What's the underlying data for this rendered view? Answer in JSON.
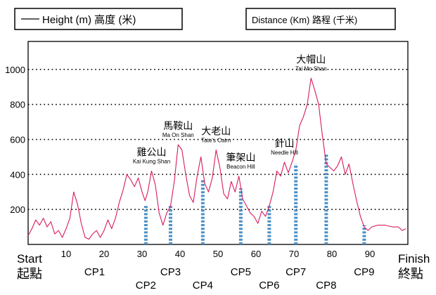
{
  "legend": {
    "height_label": "Height (m)  高度 (米)",
    "distance_label": "Distance (Km)  路程 (千米)"
  },
  "axis": {
    "start_en": "Start",
    "start_zh": "起點",
    "finish_en": "Finish",
    "finish_zh": "終點"
  },
  "colors": {
    "profile_line": "#d81b60",
    "checkpoint_bar": "#4a90c8",
    "grid": "#000000"
  },
  "chart_data": {
    "type": "line",
    "title": "",
    "xlabel": "Distance (Km) 路程 (千米)",
    "ylabel": "Height (m) 高度 (米)",
    "xlim": [
      0,
      100
    ],
    "ylim": [
      0,
      1160
    ],
    "x_ticks": [
      10,
      20,
      30,
      40,
      50,
      60,
      70,
      80,
      90
    ],
    "y_ticks": [
      200,
      400,
      600,
      800,
      1000
    ],
    "grid": "horizontal dotted",
    "series": [
      {
        "name": "Height (m)",
        "points": [
          [
            0,
            50
          ],
          [
            1,
            90
          ],
          [
            2,
            140
          ],
          [
            3,
            110
          ],
          [
            4,
            150
          ],
          [
            5,
            100
          ],
          [
            6,
            130
          ],
          [
            7,
            60
          ],
          [
            8,
            80
          ],
          [
            9,
            40
          ],
          [
            10,
            90
          ],
          [
            11,
            150
          ],
          [
            12,
            300
          ],
          [
            13,
            230
          ],
          [
            14,
            120
          ],
          [
            15,
            40
          ],
          [
            16,
            30
          ],
          [
            17,
            60
          ],
          [
            18,
            80
          ],
          [
            19,
            40
          ],
          [
            20,
            80
          ],
          [
            21,
            140
          ],
          [
            22,
            90
          ],
          [
            23,
            150
          ],
          [
            24,
            240
          ],
          [
            25,
            310
          ],
          [
            26,
            400
          ],
          [
            27,
            370
          ],
          [
            28,
            330
          ],
          [
            29,
            380
          ],
          [
            30,
            300
          ],
          [
            30.8,
            250
          ],
          [
            31.5,
            300
          ],
          [
            32.5,
            420
          ],
          [
            33.5,
            340
          ],
          [
            34.5,
            180
          ],
          [
            35.5,
            110
          ],
          [
            36.5,
            180
          ],
          [
            37.5,
            220
          ],
          [
            38.5,
            360
          ],
          [
            39.5,
            570
          ],
          [
            40.5,
            540
          ],
          [
            41.5,
            400
          ],
          [
            42.5,
            280
          ],
          [
            43.5,
            240
          ],
          [
            44.5,
            390
          ],
          [
            45.5,
            500
          ],
          [
            46.5,
            350
          ],
          [
            47.5,
            300
          ],
          [
            48.5,
            380
          ],
          [
            49.5,
            540
          ],
          [
            50.5,
            440
          ],
          [
            51.5,
            290
          ],
          [
            52.5,
            260
          ],
          [
            53.5,
            360
          ],
          [
            54.5,
            300
          ],
          [
            55.5,
            390
          ],
          [
            56.5,
            260
          ],
          [
            57.5,
            220
          ],
          [
            58.5,
            180
          ],
          [
            59.5,
            160
          ],
          [
            60.5,
            120
          ],
          [
            61.5,
            190
          ],
          [
            62.5,
            160
          ],
          [
            63.5,
            220
          ],
          [
            64.5,
            300
          ],
          [
            65.5,
            420
          ],
          [
            66.5,
            390
          ],
          [
            67.5,
            470
          ],
          [
            68.5,
            410
          ],
          [
            69.5,
            470
          ],
          [
            70.5,
            540
          ],
          [
            71.5,
            680
          ],
          [
            72.5,
            730
          ],
          [
            73.5,
            800
          ],
          [
            74.5,
            950
          ],
          [
            75.5,
            880
          ],
          [
            76.5,
            800
          ],
          [
            77.5,
            620
          ],
          [
            78.5,
            460
          ],
          [
            79.5,
            440
          ],
          [
            80.5,
            420
          ],
          [
            81.5,
            450
          ],
          [
            82.5,
            500
          ],
          [
            83.5,
            400
          ],
          [
            84.5,
            460
          ],
          [
            85.5,
            350
          ],
          [
            86.5,
            250
          ],
          [
            87.5,
            160
          ],
          [
            88.5,
            100
          ],
          [
            89.5,
            80
          ],
          [
            90.5,
            100
          ],
          [
            92,
            110
          ],
          [
            94,
            110
          ],
          [
            96,
            100
          ],
          [
            97.5,
            100
          ],
          [
            98.5,
            80
          ],
          [
            99.5,
            90
          ]
        ]
      }
    ],
    "peaks": [
      {
        "zh": "雞公山",
        "en": "Kai Kung Shan",
        "x": 32.5,
        "y": 420
      },
      {
        "zh": "馬鞍山",
        "en": "Ma On Shan",
        "x": 39.5,
        "y": 570
      },
      {
        "zh": "大老山",
        "en": "Tate's Cairn",
        "x": 49.5,
        "y": 540
      },
      {
        "zh": "筆架山",
        "en": "Beacon Hill",
        "x": 56,
        "y": 390
      },
      {
        "zh": "針山",
        "en": "Needle Hill",
        "x": 67.5,
        "y": 470
      },
      {
        "zh": "大帽山",
        "en": "Tai Mo Shan",
        "x": 74.5,
        "y": 950
      }
    ],
    "checkpoints": [
      {
        "label": "CP1",
        "x": 17.5,
        "y": 0
      },
      {
        "label": "CP2",
        "x": 31,
        "y": 220
      },
      {
        "label": "CP3",
        "x": 37.5,
        "y": 220
      },
      {
        "label": "CP4",
        "x": 46,
        "y": 370
      },
      {
        "label": "CP5",
        "x": 56,
        "y": 320
      },
      {
        "label": "CP6",
        "x": 63.5,
        "y": 220
      },
      {
        "label": "CP7",
        "x": 70.5,
        "y": 460
      },
      {
        "label": "CP8",
        "x": 78.5,
        "y": 520
      },
      {
        "label": "CP9",
        "x": 88.5,
        "y": 110
      }
    ]
  }
}
